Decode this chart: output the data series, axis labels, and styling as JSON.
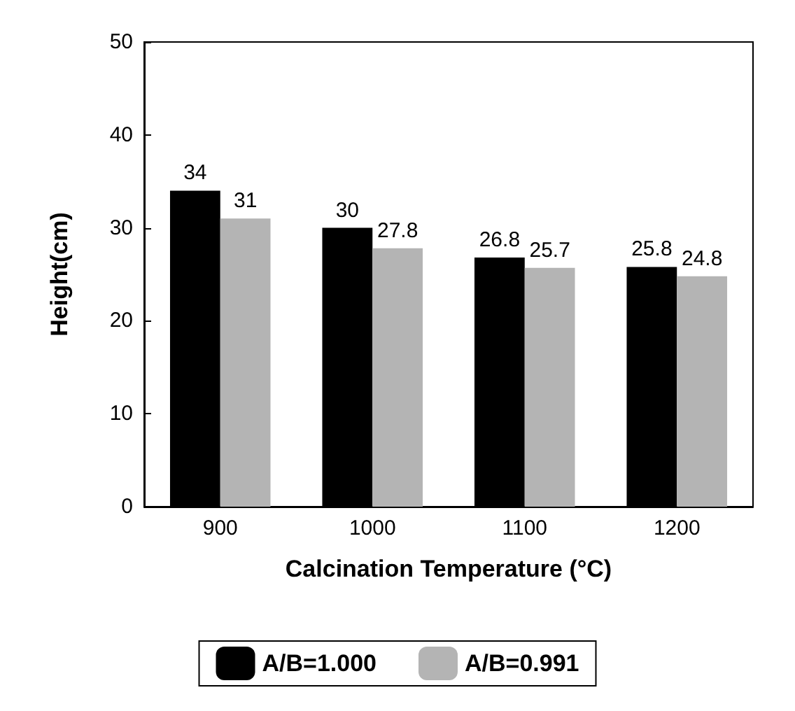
{
  "chart_data": {
    "type": "bar",
    "xlabel": "Calcination Temperature (°C)",
    "ylabel": "Height(cm)",
    "categories": [
      "900",
      "1000",
      "1100",
      "1200"
    ],
    "series": [
      {
        "name": "A/B=1.000",
        "color": "#000000",
        "values": [
          34,
          30,
          26.8,
          25.8
        ]
      },
      {
        "name": "A/B=0.991",
        "color": "#b4b4b4",
        "values": [
          31,
          27.8,
          25.7,
          24.8
        ]
      }
    ],
    "ylim": [
      0,
      50
    ],
    "yticks": [
      0,
      10,
      20,
      30,
      40,
      50
    ],
    "grid": false,
    "legend": "bottom",
    "data_labels": true
  }
}
